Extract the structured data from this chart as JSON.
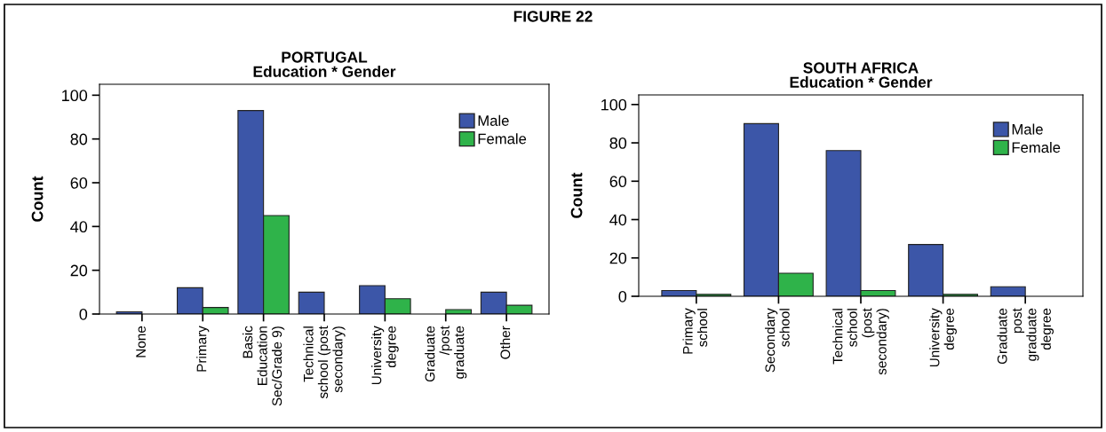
{
  "chart_data": [
    {
      "type": "bar",
      "title": "PORTUGAL",
      "subtitle": "Education * Gender",
      "ylabel": "Count",
      "annotations": [
        "FIGURE 22"
      ],
      "categories": [
        "None",
        "Primary",
        "Basic\nEducation\nSec/Grade 9)",
        "Technical\nschool (post\nsecondary)",
        "University\ndegree",
        "Graduate\n/post\ngraduate",
        "Other"
      ],
      "series": [
        {
          "name": "Male",
          "color": "#3c56a8",
          "values": [
            1,
            12,
            93,
            10,
            13,
            null,
            10
          ]
        },
        {
          "name": "Female",
          "color": "#2fb34a",
          "values": [
            null,
            3,
            45,
            null,
            7,
            2,
            4
          ]
        }
      ],
      "ylim": [
        0,
        105
      ],
      "yticks": [
        0,
        20,
        40,
        60,
        80,
        100
      ],
      "grid": false,
      "legend": "top right"
    },
    {
      "type": "bar",
      "title": "SOUTH AFRICA",
      "subtitle": "Education * Gender",
      "ylabel": "Count",
      "categories": [
        "Primary\nschool",
        "Secondary\nschool",
        "Technical\nschool\n(post\nsecondary)",
        "University\ndegree",
        "Graduate\npost\ngraduate\ndegree"
      ],
      "series": [
        {
          "name": "Male",
          "color": "#3c56a8",
          "values": [
            3,
            90,
            76,
            27,
            5
          ]
        },
        {
          "name": "Female",
          "color": "#2fb34a",
          "values": [
            1,
            12,
            3,
            1,
            null
          ]
        }
      ],
      "ylim": [
        0,
        105
      ],
      "yticks": [
        0,
        20,
        40,
        60,
        80,
        100
      ],
      "grid": false,
      "legend": "top right"
    }
  ]
}
